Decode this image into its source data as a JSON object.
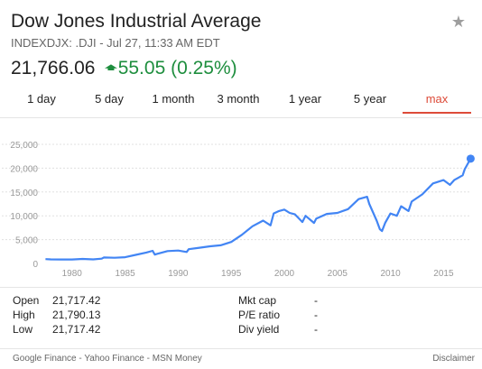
{
  "header": {
    "title": "Dow Jones Industrial Average",
    "subtitle": "INDEXDJX: .DJI - Jul 27, 11:33 AM EDT",
    "favorite_icon": "star-icon"
  },
  "quote": {
    "price": "21,766.06",
    "change_icon": "arrow-up-icon",
    "change": "55.05 (0.25%)",
    "change_color": "#1e8e3e"
  },
  "tabs": [
    {
      "label": "1 day",
      "active": false
    },
    {
      "label": "5 day",
      "active": false
    },
    {
      "label": "1 month",
      "active": false
    },
    {
      "label": "3 month",
      "active": false
    },
    {
      "label": "1 year",
      "active": false
    },
    {
      "label": "5 year",
      "active": false
    },
    {
      "label": "max",
      "active": true
    }
  ],
  "chart_data": {
    "type": "line",
    "title": "",
    "xlabel": "",
    "ylabel": "",
    "x_ticks": [
      "1980",
      "1985",
      "1990",
      "1995",
      "2000",
      "2005",
      "2010",
      "2015"
    ],
    "y_ticks": [
      "0",
      "5,000",
      "10,000",
      "15,000",
      "20,000",
      "25,000"
    ],
    "xlim": [
      1977.3,
      2017.6
    ],
    "ylim": [
      0,
      25000
    ],
    "grid": "horizontal dashed",
    "line_color": "#4285f4",
    "series": [
      {
        "x": [
          1977.5,
          1978,
          1979,
          1980,
          1981,
          1982,
          1982.8,
          1983,
          1984,
          1985,
          1986,
          1987,
          1987.6,
          1987.8,
          1988,
          1989,
          1990,
          1990.8,
          1991,
          1992,
          1993,
          1994,
          1995,
          1996,
          1997,
          1998,
          1998.7,
          1999,
          1999.5,
          2000,
          2000.5,
          2001,
          2001.7,
          2002,
          2002.8,
          2003,
          2004,
          2005,
          2006,
          2007,
          2007.8,
          2008,
          2008.7,
          2009,
          2009.2,
          2009.5,
          2010,
          2010.6,
          2011,
          2011.7,
          2012,
          2013,
          2014,
          2015,
          2015.6,
          2016,
          2016.8,
          2017,
          2017.55
        ],
        "y": [
          900,
          850,
          840,
          830,
          950,
          850,
          1000,
          1250,
          1200,
          1300,
          1800,
          2300,
          2650,
          1850,
          2000,
          2600,
          2700,
          2400,
          3000,
          3300,
          3600,
          3800,
          4500,
          6000,
          7800,
          9000,
          8000,
          10500,
          11000,
          11300,
          10600,
          10300,
          8700,
          10000,
          8500,
          9400,
          10400,
          10600,
          11400,
          13500,
          14000,
          12500,
          9000,
          7200,
          6800,
          8500,
          10500,
          10000,
          12000,
          11000,
          13000,
          14500,
          16800,
          17500,
          16500,
          17500,
          18500,
          19800,
          22000
        ]
      }
    ]
  },
  "stats": {
    "left": [
      {
        "label": "Open",
        "value": "21,717.42"
      },
      {
        "label": "High",
        "value": "21,790.13"
      },
      {
        "label": "Low",
        "value": "21,717.42"
      }
    ],
    "right": [
      {
        "label": "Mkt cap",
        "value": "-"
      },
      {
        "label": "P/E ratio",
        "value": "-"
      },
      {
        "label": "Div yield",
        "value": "-"
      }
    ]
  },
  "footer": {
    "sources": [
      "Google Finance",
      "Yahoo Finance",
      "MSN Money"
    ],
    "separator": " - ",
    "disclaimer": "Disclaimer"
  }
}
